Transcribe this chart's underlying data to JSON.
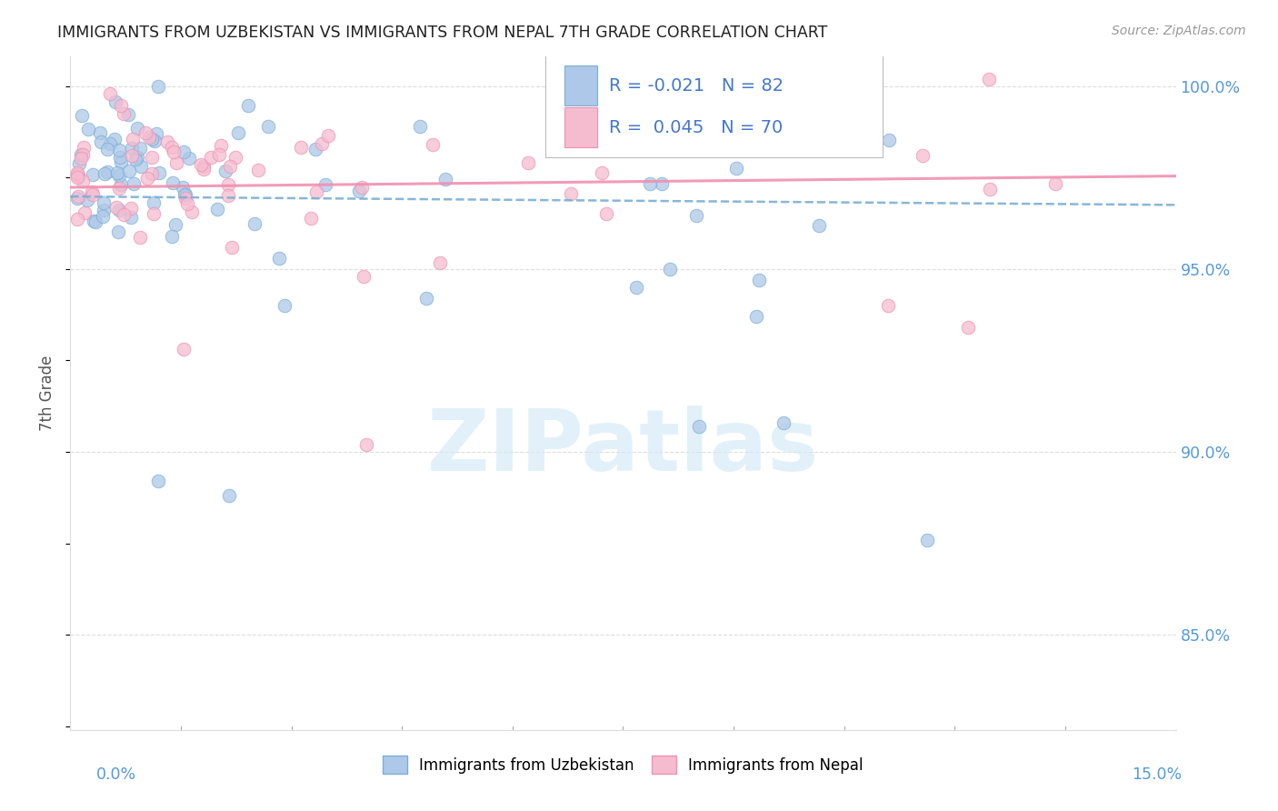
{
  "title": "IMMIGRANTS FROM UZBEKISTAN VS IMMIGRANTS FROM NEPAL 7TH GRADE CORRELATION CHART",
  "source": "Source: ZipAtlas.com",
  "ylabel": "7th Grade",
  "yaxis_values": [
    1.0,
    0.95,
    0.9,
    0.85
  ],
  "xmin": 0.0,
  "xmax": 0.15,
  "ymin": 0.824,
  "ymax": 1.008,
  "legend_text_1": "R = -0.021  N = 82",
  "legend_text_2": "R =  0.045  N = 70",
  "color_uzbekistan_fill": "#adc8e8",
  "color_uzbekistan_edge": "#7aafd4",
  "color_nepal_fill": "#f5bcd0",
  "color_nepal_edge": "#f090b0",
  "color_blue_line": "#7aafd4",
  "color_pink_line": "#f090b0",
  "color_right_axis": "#5599dd",
  "color_title": "#222222",
  "color_source": "#999999",
  "color_legend_text": "#4477cc",
  "color_grid": "#dddddd",
  "watermark_color": "#d0e8f5",
  "watermark_text": "ZIPatlas"
}
